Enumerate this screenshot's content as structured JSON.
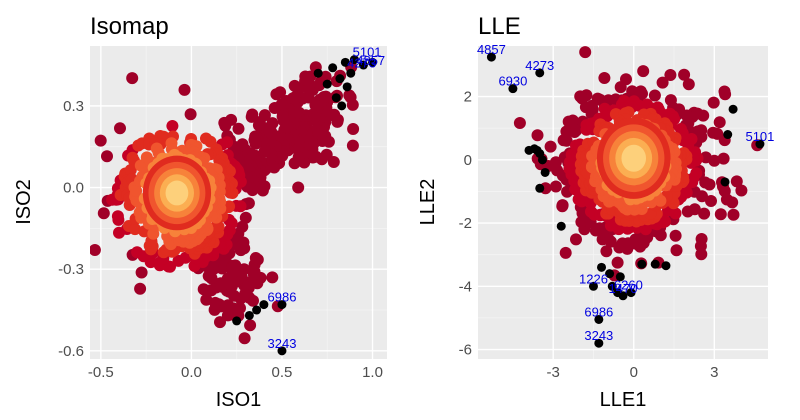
{
  "colors": {
    "panel_bg": "#ebebeb",
    "grid_major": "#ffffff",
    "grid_minor": "#f4f4f4",
    "density_ramp": [
      "#a00028",
      "#c40025",
      "#e02b1f",
      "#f0552e",
      "#f7823a",
      "#fbae52",
      "#fdd07b"
    ],
    "outlier_point": "#000000",
    "label_text": "#0000e0",
    "tick_text": "#4d4d4d"
  },
  "chart_data": [
    {
      "type": "scatter",
      "title": "Isomap",
      "xlabel": "ISO1",
      "ylabel": "ISO2",
      "xlim": [
        -0.56,
        1.08
      ],
      "ylim": [
        -0.63,
        0.52
      ],
      "x_ticks": [
        -0.5,
        0.0,
        0.5,
        1.0
      ],
      "x_tick_labels": [
        "-0.5",
        "0.0",
        "0.5",
        "1.0"
      ],
      "y_ticks": [
        -0.6,
        -0.3,
        0.0,
        0.3
      ],
      "y_tick_labels": [
        "-0.6",
        "-0.3",
        "0.0",
        "0.3"
      ],
      "grid": true,
      "density": {
        "description": "dense cloud coloured by point density, peak near the center",
        "centers": [
          [
            -0.08,
            -0.02
          ],
          [
            0.22,
            0.05
          ],
          [
            0.45,
            0.2
          ],
          [
            0.7,
            0.3
          ],
          [
            0.1,
            -0.25
          ]
        ],
        "levels": 7
      },
      "outliers": [
        {
          "x": 0.25,
          "y": -0.49
        },
        {
          "x": 0.32,
          "y": -0.47
        },
        {
          "x": 0.36,
          "y": -0.45
        },
        {
          "x": 0.4,
          "y": -0.43
        },
        {
          "x": 0.5,
          "y": -0.43
        },
        {
          "x": 0.5,
          "y": -0.6
        },
        {
          "x": 0.7,
          "y": 0.42
        },
        {
          "x": 0.75,
          "y": 0.38
        },
        {
          "x": 0.78,
          "y": 0.44
        },
        {
          "x": 0.82,
          "y": 0.4
        },
        {
          "x": 0.85,
          "y": 0.46
        },
        {
          "x": 0.88,
          "y": 0.42
        },
        {
          "x": 0.9,
          "y": 0.47
        },
        {
          "x": 0.8,
          "y": 0.33
        },
        {
          "x": 0.83,
          "y": 0.3
        },
        {
          "x": 0.86,
          "y": 0.37
        },
        {
          "x": 0.95,
          "y": 0.45
        },
        {
          "x": 1.0,
          "y": 0.46
        }
      ],
      "labels": [
        {
          "text": "6986",
          "x": 0.5,
          "y": -0.43
        },
        {
          "text": "3243",
          "x": 0.5,
          "y": -0.6
        },
        {
          "text": "5101",
          "x": 0.97,
          "y": 0.47
        },
        {
          "text": "4857",
          "x": 0.99,
          "y": 0.44
        },
        {
          "text": "4273",
          "x": 0.94,
          "y": 0.43
        }
      ]
    },
    {
      "type": "scatter",
      "title": "LLE",
      "xlabel": "LLE1",
      "ylabel": "LLE2",
      "xlim": [
        -5.8,
        5.0
      ],
      "ylim": [
        -6.3,
        3.6
      ],
      "x_ticks": [
        -3,
        0,
        3
      ],
      "x_tick_labels": [
        "-3",
        "0",
        "3"
      ],
      "y_ticks": [
        -6,
        -4,
        -2,
        0,
        2
      ],
      "y_tick_labels": [
        "-6",
        "-4",
        "-2",
        "0",
        "2"
      ],
      "grid": true,
      "density": {
        "description": "round dense cloud coloured by point density, peak near the origin",
        "centers": [
          [
            0,
            0
          ]
        ],
        "levels": 7
      },
      "outliers": [
        {
          "x": -5.3,
          "y": 3.25
        },
        {
          "x": -4.5,
          "y": 2.25
        },
        {
          "x": -3.5,
          "y": 2.75
        },
        {
          "x": -3.9,
          "y": 0.3
        },
        {
          "x": -3.7,
          "y": 0.35
        },
        {
          "x": -3.5,
          "y": 0.2
        },
        {
          "x": -3.4,
          "y": 0.0
        },
        {
          "x": -3.3,
          "y": -0.4
        },
        {
          "x": -3.5,
          "y": -0.9
        },
        {
          "x": -2.7,
          "y": -2.1
        },
        {
          "x": -3.6,
          "y": 0.3
        },
        {
          "x": 3.7,
          "y": 1.6
        },
        {
          "x": 3.5,
          "y": 0.8
        },
        {
          "x": 3.4,
          "y": -0.7
        },
        {
          "x": 4.7,
          "y": 0.5
        },
        {
          "x": -1.5,
          "y": -4.0
        },
        {
          "x": -0.8,
          "y": -4.0
        },
        {
          "x": -0.6,
          "y": -4.2
        },
        {
          "x": -0.4,
          "y": -4.3
        },
        {
          "x": -0.1,
          "y": -4.2
        },
        {
          "x": -1.2,
          "y": -3.4
        },
        {
          "x": -0.9,
          "y": -3.6
        },
        {
          "x": -0.5,
          "y": -3.7
        },
        {
          "x": 0.3,
          "y": -3.3
        },
        {
          "x": 0.8,
          "y": -3.3
        },
        {
          "x": 1.2,
          "y": -3.35
        },
        {
          "x": -1.3,
          "y": -5.05
        },
        {
          "x": -1.3,
          "y": -5.8
        }
      ],
      "labels": [
        {
          "text": "4857",
          "x": -5.3,
          "y": 3.25
        },
        {
          "text": "4273",
          "x": -3.5,
          "y": 2.75
        },
        {
          "text": "6930",
          "x": -4.5,
          "y": 2.25
        },
        {
          "text": "5101",
          "x": 4.7,
          "y": 0.5
        },
        {
          "text": "1226",
          "x": -1.5,
          "y": -4.0
        },
        {
          "text": "1470",
          "x": -0.4,
          "y": -4.3
        },
        {
          "text": "6260",
          "x": -0.2,
          "y": -4.2
        },
        {
          "text": "6986",
          "x": -1.3,
          "y": -5.05
        },
        {
          "text": "3243",
          "x": -1.3,
          "y": -5.8
        }
      ]
    }
  ]
}
